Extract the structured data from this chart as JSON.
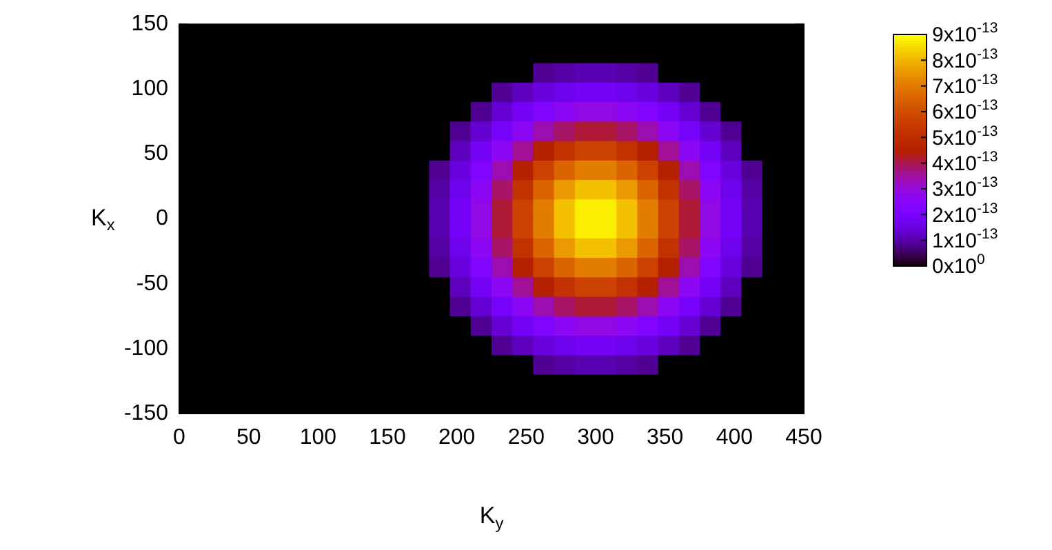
{
  "chart_data": {
    "type": "heatmap",
    "xlabel": "K$_{y}$",
    "ylabel": "K$_{x}$",
    "x": [
      7.5,
      22.5,
      37.5,
      52.5,
      67.5,
      82.5,
      97.5,
      112.5,
      127.5,
      142.5,
      157.5,
      172.5,
      187.5,
      202.5,
      217.5,
      232.5,
      247.5,
      262.5,
      277.5,
      292.5,
      307.5,
      322.5,
      337.5,
      352.5,
      367.5,
      382.5,
      397.5,
      412.5,
      427.5,
      442.5
    ],
    "y": [
      142.5,
      127.5,
      112.5,
      97.5,
      82.5,
      67.5,
      52.5,
      37.5,
      22.5,
      7.5,
      -7.5,
      -22.5,
      -37.5,
      -52.5,
      -67.5,
      -82.5,
      -97.5,
      -112.5,
      -127.5,
      -142.5
    ],
    "xlim": [
      0,
      450
    ],
    "xticks": [
      0,
      50,
      100,
      150,
      200,
      250,
      300,
      350,
      400,
      450
    ],
    "ylim": [
      -150,
      150
    ],
    "yticks": [
      -150,
      -100,
      -50,
      0,
      50,
      100,
      150
    ],
    "clim": [
      0,
      9e-13
    ],
    "cticks": [
      {
        "value": 0,
        "label": "0x10$^{0}$"
      },
      {
        "value": 1e-13,
        "label": "1x10$^{-13}$"
      },
      {
        "value": 2e-13,
        "label": "2x10$^{-13}$"
      },
      {
        "value": 3e-13,
        "label": "3x10$^{-13}$"
      },
      {
        "value": 4e-13,
        "label": "4x10$^{-13}$"
      },
      {
        "value": 5e-13,
        "label": "5x10$^{-13}$"
      },
      {
        "value": 6e-13,
        "label": "6x10$^{-13}$"
      },
      {
        "value": 7e-13,
        "label": "7x10$^{-13}$"
      },
      {
        "value": 8e-13,
        "label": "8x10$^{-13}$"
      },
      {
        "value": 9e-13,
        "label": "9x10$^{-13}$"
      }
    ],
    "cells": [
      [
        0,
        0,
        0,
        0,
        0,
        0,
        0,
        0,
        0,
        0,
        0,
        0,
        0,
        0,
        0,
        0,
        0,
        0,
        0,
        0,
        0,
        0,
        0,
        0,
        0,
        0,
        0,
        0,
        0,
        0
      ],
      [
        0,
        0,
        0,
        0,
        0,
        0,
        0,
        0,
        0,
        0,
        0,
        0,
        0,
        0,
        0,
        0,
        0,
        0,
        0,
        0,
        0,
        0,
        0,
        0,
        0,
        0,
        0,
        0,
        0,
        0
      ],
      [
        0,
        0,
        0,
        0,
        0,
        0,
        0,
        0,
        0,
        0,
        0,
        0,
        0,
        0,
        0,
        0,
        0,
        9e-14,
        1e-13,
        1.1e-13,
        1.1e-13,
        1e-13,
        9e-14,
        0,
        0,
        0,
        0,
        0,
        0,
        0
      ],
      [
        0,
        0,
        0,
        0,
        0,
        0,
        0,
        0,
        0,
        0,
        0,
        0,
        0,
        0,
        0,
        9e-14,
        1.2e-13,
        1.5e-13,
        1.7e-13,
        1.9e-13,
        1.9e-13,
        1.7e-13,
        1.5e-13,
        1.2e-13,
        9e-14,
        0,
        0,
        0,
        0,
        0
      ],
      [
        0,
        0,
        0,
        0,
        0,
        0,
        0,
        0,
        0,
        0,
        0,
        0,
        0,
        0,
        9e-14,
        1.4e-13,
        1.9e-13,
        2.3e-13,
        2.7e-13,
        2.9e-13,
        2.9e-13,
        2.7e-13,
        2.3e-13,
        1.9e-13,
        1.4e-13,
        9e-14,
        0,
        0,
        0,
        0
      ],
      [
        0,
        0,
        0,
        0,
        0,
        0,
        0,
        0,
        0,
        0,
        0,
        0,
        0,
        9e-14,
        1.4e-13,
        2e-13,
        2.7e-13,
        3.4e-13,
        3.9e-13,
        4.2e-13,
        4.2e-13,
        3.9e-13,
        3.4e-13,
        2.7e-13,
        2e-13,
        1.4e-13,
        9e-14,
        0,
        0,
        0
      ],
      [
        0,
        0,
        0,
        0,
        0,
        0,
        0,
        0,
        0,
        0,
        0,
        0,
        0,
        1.2e-13,
        1.9e-13,
        2.7e-13,
        3.6e-13,
        4.5e-13,
        5.2e-13,
        5.7e-13,
        5.7e-13,
        5.2e-13,
        4.5e-13,
        3.6e-13,
        2.7e-13,
        1.9e-13,
        1.2e-13,
        0,
        0,
        0
      ],
      [
        0,
        0,
        0,
        0,
        0,
        0,
        0,
        0,
        0,
        0,
        0,
        0,
        9e-14,
        1.5e-13,
        2.3e-13,
        3.4e-13,
        4.5e-13,
        5.7e-13,
        6.6e-13,
        7.1e-13,
        7.1e-13,
        6.6e-13,
        5.7e-13,
        4.5e-13,
        3.4e-13,
        2.3e-13,
        1.5e-13,
        9e-14,
        0,
        0
      ],
      [
        0,
        0,
        0,
        0,
        0,
        0,
        0,
        0,
        0,
        0,
        0,
        0,
        1e-13,
        1.7e-13,
        2.7e-13,
        3.9e-13,
        5.2e-13,
        6.6e-13,
        7.6e-13,
        8.2e-13,
        8.2e-13,
        7.6e-13,
        6.6e-13,
        5.2e-13,
        3.9e-13,
        2.7e-13,
        1.7e-13,
        1e-13,
        0,
        0
      ],
      [
        0,
        0,
        0,
        0,
        0,
        0,
        0,
        0,
        0,
        0,
        0,
        0,
        1.1e-13,
        1.9e-13,
        2.9e-13,
        4.2e-13,
        5.7e-13,
        7.1e-13,
        8.2e-13,
        8.8e-13,
        8.8e-13,
        8.2e-13,
        7.1e-13,
        5.7e-13,
        4.2e-13,
        2.9e-13,
        1.9e-13,
        1.1e-13,
        0,
        0
      ],
      [
        0,
        0,
        0,
        0,
        0,
        0,
        0,
        0,
        0,
        0,
        0,
        0,
        1.1e-13,
        1.9e-13,
        2.9e-13,
        4.2e-13,
        5.7e-13,
        7.1e-13,
        8.2e-13,
        8.8e-13,
        8.8e-13,
        8.2e-13,
        7.1e-13,
        5.7e-13,
        4.2e-13,
        2.9e-13,
        1.9e-13,
        1.1e-13,
        0,
        0
      ],
      [
        0,
        0,
        0,
        0,
        0,
        0,
        0,
        0,
        0,
        0,
        0,
        0,
        1e-13,
        1.7e-13,
        2.7e-13,
        3.9e-13,
        5.2e-13,
        6.6e-13,
        7.6e-13,
        8.2e-13,
        8.2e-13,
        7.6e-13,
        6.6e-13,
        5.2e-13,
        3.9e-13,
        2.7e-13,
        1.7e-13,
        1e-13,
        0,
        0
      ],
      [
        0,
        0,
        0,
        0,
        0,
        0,
        0,
        0,
        0,
        0,
        0,
        0,
        9e-14,
        1.5e-13,
        2.3e-13,
        3.4e-13,
        4.5e-13,
        5.7e-13,
        6.6e-13,
        7.1e-13,
        7.1e-13,
        6.6e-13,
        5.7e-13,
        4.5e-13,
        3.4e-13,
        2.3e-13,
        1.5e-13,
        9e-14,
        0,
        0
      ],
      [
        0,
        0,
        0,
        0,
        0,
        0,
        0,
        0,
        0,
        0,
        0,
        0,
        0,
        1.2e-13,
        1.9e-13,
        2.7e-13,
        3.6e-13,
        4.5e-13,
        5.2e-13,
        5.7e-13,
        5.7e-13,
        5.2e-13,
        4.5e-13,
        3.6e-13,
        2.7e-13,
        1.9e-13,
        1.2e-13,
        0,
        0,
        0
      ],
      [
        0,
        0,
        0,
        0,
        0,
        0,
        0,
        0,
        0,
        0,
        0,
        0,
        0,
        9e-14,
        1.4e-13,
        2e-13,
        2.7e-13,
        3.4e-13,
        3.9e-13,
        4.2e-13,
        4.2e-13,
        3.9e-13,
        3.4e-13,
        2.7e-13,
        2e-13,
        1.4e-13,
        9e-14,
        0,
        0,
        0
      ],
      [
        0,
        0,
        0,
        0,
        0,
        0,
        0,
        0,
        0,
        0,
        0,
        0,
        0,
        0,
        9e-14,
        1.4e-13,
        1.9e-13,
        2.3e-13,
        2.7e-13,
        2.9e-13,
        2.9e-13,
        2.7e-13,
        2.3e-13,
        1.9e-13,
        1.4e-13,
        9e-14,
        0,
        0,
        0,
        0
      ],
      [
        0,
        0,
        0,
        0,
        0,
        0,
        0,
        0,
        0,
        0,
        0,
        0,
        0,
        0,
        0,
        9e-14,
        1.2e-13,
        1.5e-13,
        1.7e-13,
        1.9e-13,
        1.9e-13,
        1.7e-13,
        1.5e-13,
        1.2e-13,
        9e-14,
        0,
        0,
        0,
        0,
        0
      ],
      [
        0,
        0,
        0,
        0,
        0,
        0,
        0,
        0,
        0,
        0,
        0,
        0,
        0,
        0,
        0,
        0,
        0,
        9e-14,
        1e-13,
        1.1e-13,
        1.1e-13,
        1e-13,
        9e-14,
        0,
        0,
        0,
        0,
        0,
        0,
        0
      ],
      [
        0,
        0,
        0,
        0,
        0,
        0,
        0,
        0,
        0,
        0,
        0,
        0,
        0,
        0,
        0,
        0,
        0,
        0,
        0,
        0,
        0,
        0,
        0,
        0,
        0,
        0,
        0,
        0,
        0,
        0
      ],
      [
        0,
        0,
        0,
        0,
        0,
        0,
        0,
        0,
        0,
        0,
        0,
        0,
        0,
        0,
        0,
        0,
        0,
        0,
        0,
        0,
        0,
        0,
        0,
        0,
        0,
        0,
        0,
        0,
        0,
        0
      ]
    ]
  }
}
